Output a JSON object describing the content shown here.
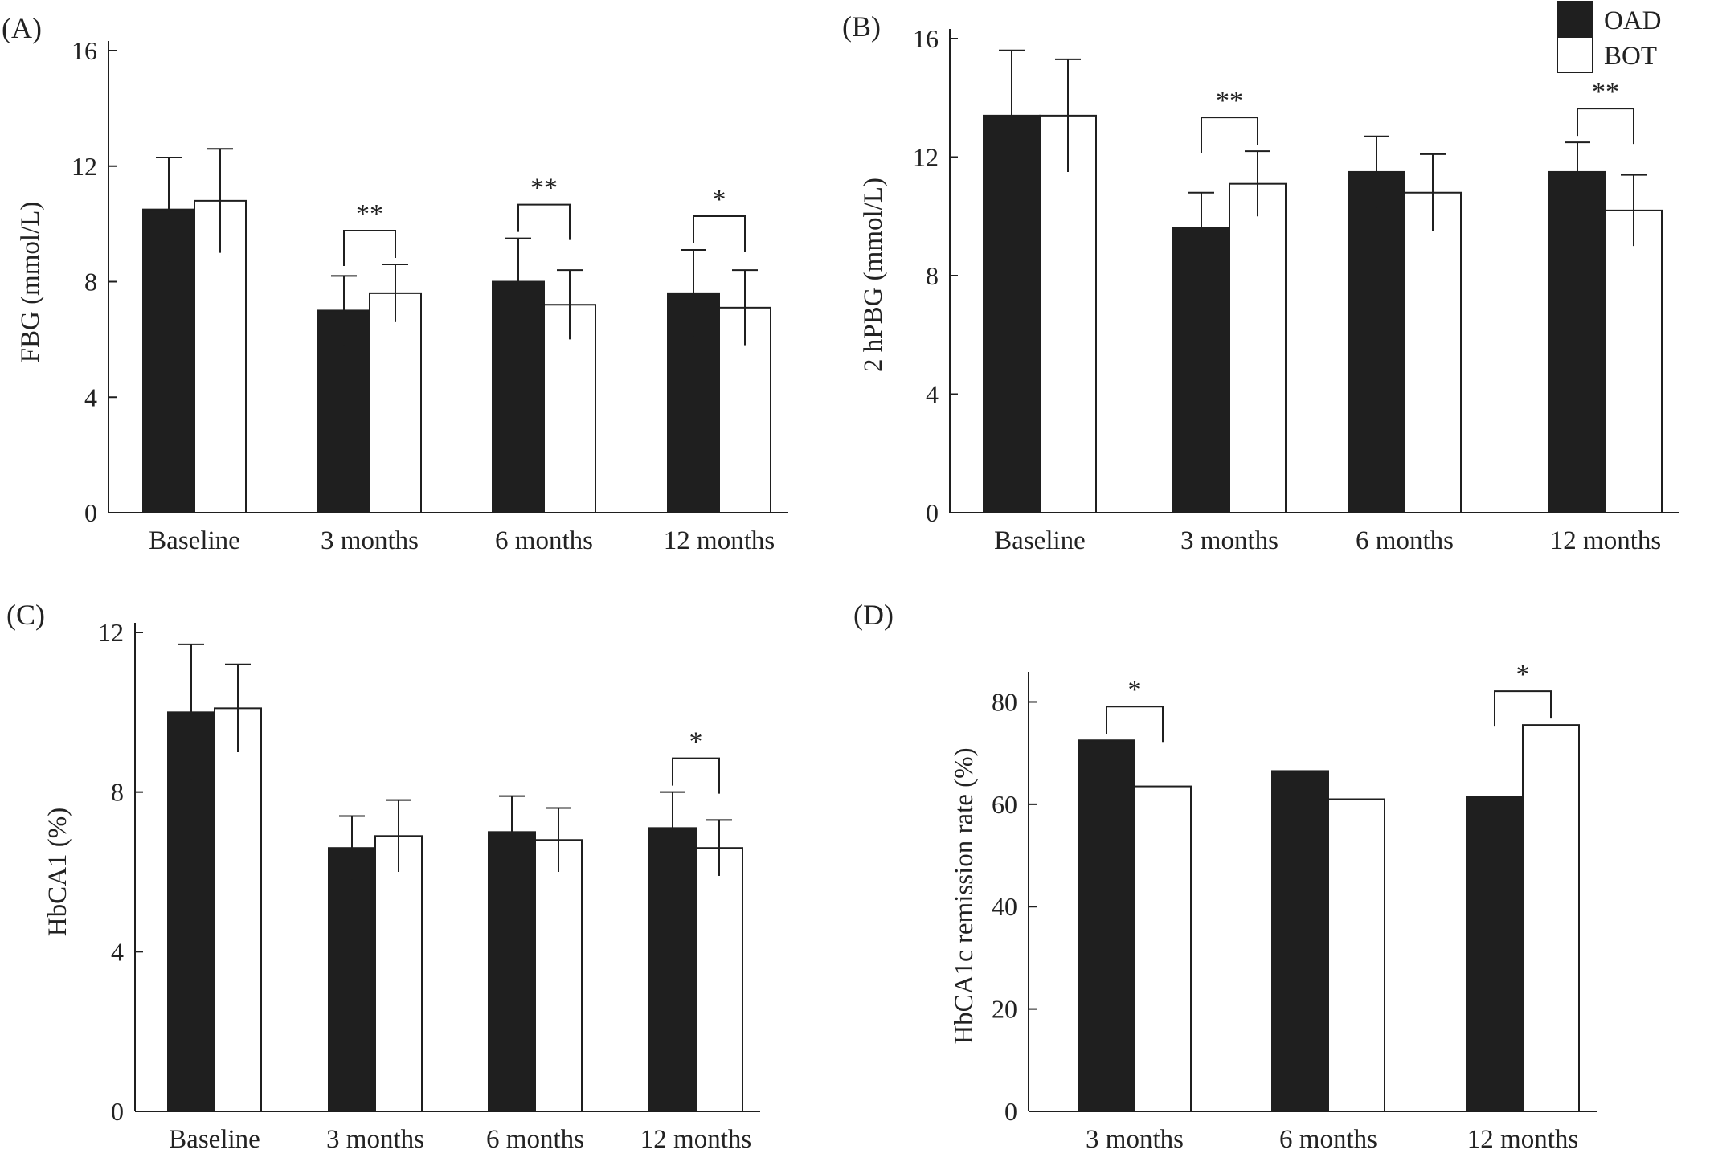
{
  "legend": [
    {
      "label": "OAD",
      "color": "#1f1f1f"
    },
    {
      "label": "BOT",
      "color": "#ffffff"
    }
  ],
  "chart_data": [
    {
      "panel": "(A)",
      "type": "bar",
      "ylabel": "FBG (mmol/L)",
      "ylim": [
        0,
        16
      ],
      "yticks": [
        0,
        4,
        8,
        12,
        16
      ],
      "categories": [
        "Baseline",
        "3 months",
        "6 months",
        "12 months"
      ],
      "series": [
        {
          "name": "OAD",
          "values": [
            10.5,
            7.0,
            8.0,
            7.6
          ],
          "errors": [
            1.8,
            1.2,
            1.5,
            1.5
          ]
        },
        {
          "name": "BOT",
          "values": [
            10.8,
            7.6,
            7.2,
            7.1
          ],
          "errors": [
            1.8,
            1.0,
            1.2,
            1.3
          ]
        }
      ],
      "significance": [
        {
          "category": "3 months",
          "label": "**"
        },
        {
          "category": "6 months",
          "label": "**"
        },
        {
          "category": "12 months",
          "label": "*"
        }
      ]
    },
    {
      "panel": "(B)",
      "type": "bar",
      "ylabel": "2 hPBG (mmol/L)",
      "ylim": [
        0,
        16
      ],
      "yticks": [
        0,
        4,
        8,
        12,
        16
      ],
      "categories": [
        "Baseline",
        "3 months",
        "6 months",
        "12 months"
      ],
      "series": [
        {
          "name": "OAD",
          "values": [
            13.4,
            9.6,
            11.5,
            11.5
          ],
          "errors": [
            2.2,
            1.2,
            1.2,
            1.0
          ]
        },
        {
          "name": "BOT",
          "values": [
            13.4,
            11.1,
            10.8,
            10.2
          ],
          "errors": [
            1.9,
            1.1,
            1.3,
            1.2
          ]
        }
      ],
      "significance": [
        {
          "category": "3 months",
          "label": "**"
        },
        {
          "category": "12 months",
          "label": "**"
        }
      ]
    },
    {
      "panel": "(C)",
      "type": "bar",
      "ylabel": "HbCA1 (%)",
      "ylim": [
        0,
        12
      ],
      "yticks": [
        0,
        4,
        8,
        12
      ],
      "categories": [
        "Baseline",
        "3 months",
        "6 months",
        "12 months"
      ],
      "series": [
        {
          "name": "OAD",
          "values": [
            10.0,
            6.6,
            7.0,
            7.1
          ],
          "errors": [
            1.7,
            0.8,
            0.9,
            0.9
          ]
        },
        {
          "name": "BOT",
          "values": [
            10.1,
            6.9,
            6.8,
            6.6
          ],
          "errors": [
            1.1,
            0.9,
            0.8,
            0.7
          ]
        }
      ],
      "significance": [
        {
          "category": "12 months",
          "label": "*"
        }
      ]
    },
    {
      "panel": "(D)",
      "type": "bar",
      "ylabel": "HbCA1c remission rate (%)",
      "ylim": [
        0,
        84
      ],
      "yticks": [
        0,
        20,
        40,
        60,
        80
      ],
      "categories": [
        "3 months",
        "6 months",
        "12 months"
      ],
      "series": [
        {
          "name": "OAD",
          "values": [
            72.5,
            66.5,
            61.5
          ]
        },
        {
          "name": "BOT",
          "values": [
            63.5,
            61.0,
            75.5
          ]
        }
      ],
      "significance": [
        {
          "category": "3 months",
          "label": "*"
        },
        {
          "category": "12 months",
          "label": "*"
        }
      ]
    }
  ]
}
